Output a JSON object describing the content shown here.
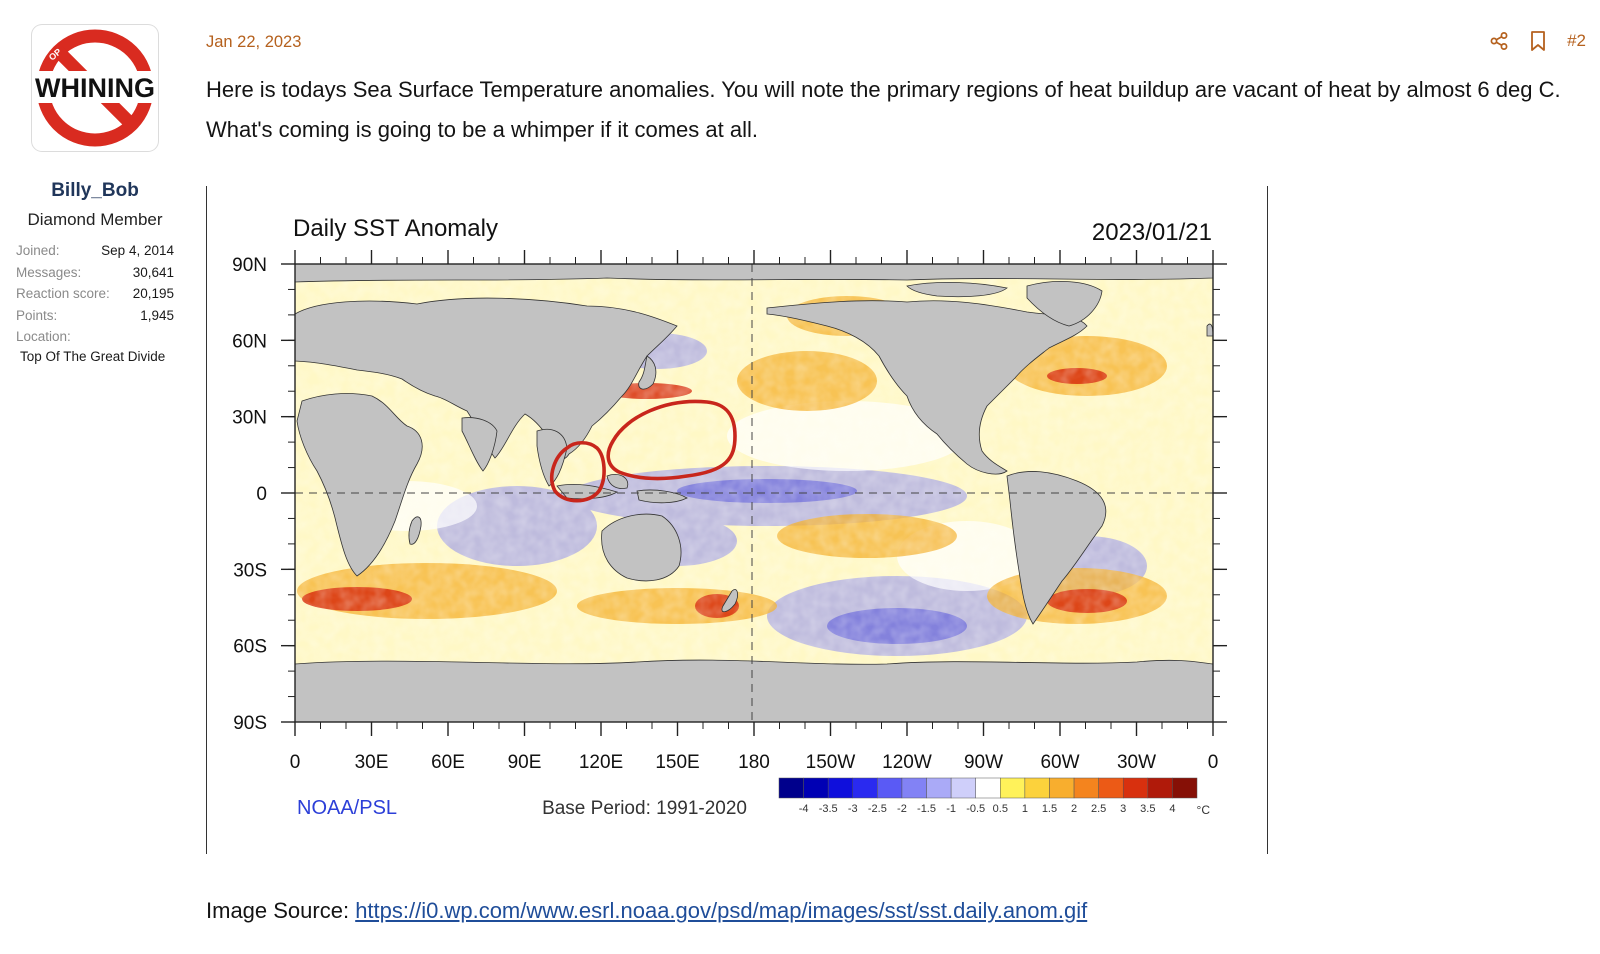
{
  "user": {
    "avatar_text": "WHINING",
    "avatar_small": "OP",
    "name": "Billy_Bob",
    "title": "Diamond Member",
    "stats": [
      {
        "label": "Joined:",
        "value": "Sep 4, 2014"
      },
      {
        "label": "Messages:",
        "value": "30,641"
      },
      {
        "label": "Reaction score:",
        "value": "20,195"
      },
      {
        "label": "Points:",
        "value": "1,945"
      }
    ],
    "location_label": "Location:",
    "location_value": "Top Of The Great Divide"
  },
  "post": {
    "date": "Jan 22, 2023",
    "number": "#2",
    "text": "Here is todays Sea Surface Temperature anomalies. You will note the primary regions of heat buildup are vacant of heat by almost 6 deg C. What's coming is going to be a whimper if it comes at all.",
    "source_label": "Image Source: ",
    "source_url": "https://i0.wp.com/www.esrl.noaa.gov/psd/map/images/sst/sst.daily.anom.gif"
  },
  "map": {
    "title": "Daily SST Anomaly",
    "date": "2023/01/21",
    "credit": "NOAA/PSL",
    "base_period": "Base Period: 1991-2020",
    "lat_labels": [
      "90N",
      "60N",
      "30N",
      "0",
      "30S",
      "60S",
      "90S"
    ],
    "lon_labels": [
      "0",
      "30E",
      "60E",
      "90E",
      "120E",
      "150E",
      "180",
      "150W",
      "120W",
      "90W",
      "60W",
      "30W",
      "0"
    ],
    "colorbar_labels": [
      "-4",
      "-3.5",
      "-3",
      "-2.5",
      "-2",
      "-1.5",
      "-1",
      "-0.5",
      "0.5",
      "1",
      "1.5",
      "2",
      "2.5",
      "3",
      "3.5",
      "4"
    ],
    "colorbar_unit": "°C",
    "colorbar_colors": [
      "#00008c",
      "#0000b4",
      "#0f0fdc",
      "#2a2af0",
      "#5a5af5",
      "#8282f5",
      "#aaaaf7",
      "#cfcffa",
      "#ffffff",
      "#fff25a",
      "#fcd23c",
      "#f8ae2e",
      "#f4841e",
      "#ec5a16",
      "#d8300e",
      "#b01a0a",
      "#861006"
    ]
  }
}
